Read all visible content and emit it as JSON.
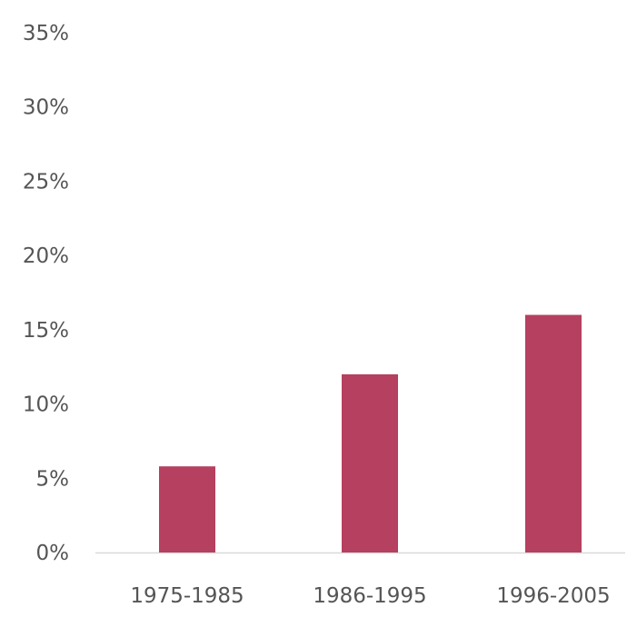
{
  "chart_data": {
    "type": "bar",
    "categories": [
      "1975-1985",
      "1986-1995",
      "1996-2005"
    ],
    "values": [
      5.8,
      12,
      16
    ],
    "y_ticks": [
      "0%",
      "5%",
      "10%",
      "15%",
      "20%",
      "25%",
      "30%",
      "35%"
    ],
    "y_tick_values": [
      0,
      5,
      10,
      15,
      20,
      25,
      30,
      35
    ],
    "ylim": [
      0,
      35
    ],
    "grid": false,
    "legend": "none",
    "bar_color": "#b5405f",
    "axis_color": "#d9d9d9"
  }
}
